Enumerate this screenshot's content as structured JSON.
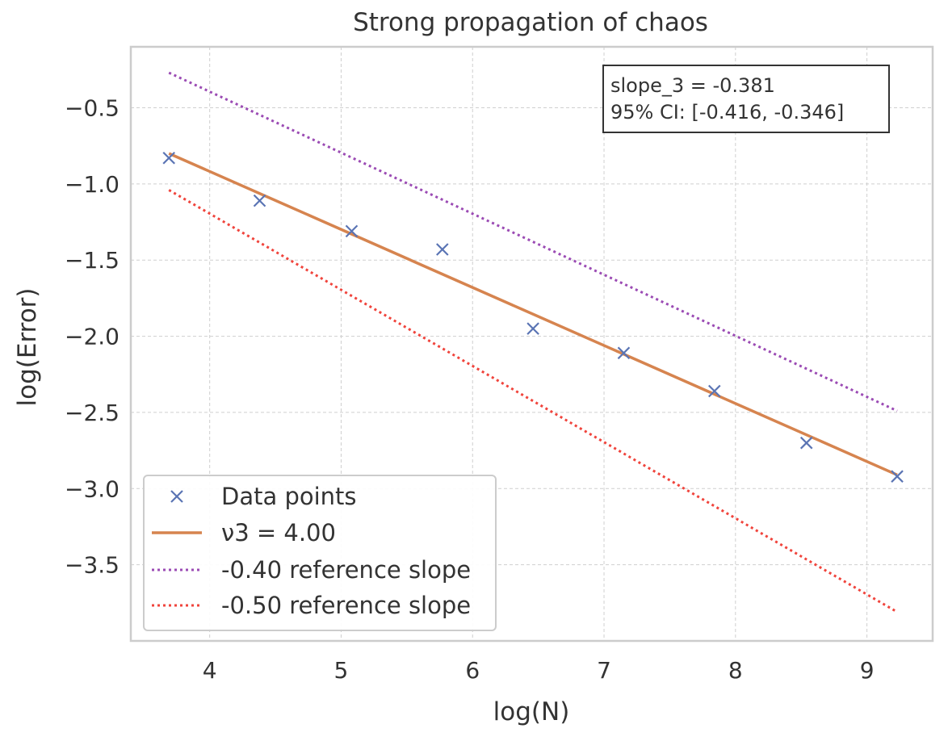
{
  "chart_data": {
    "type": "scatter",
    "title": "Strong propagation of chaos",
    "xlabel": "log(N)",
    "ylabel": "log(Error)",
    "xlim": [
      3.4,
      9.5
    ],
    "ylim": [
      -4.0,
      -0.1
    ],
    "x_ticks": [
      4,
      5,
      6,
      7,
      8,
      9
    ],
    "x_tick_labels": [
      "4",
      "5",
      "6",
      "7",
      "8",
      "9"
    ],
    "y_ticks": [
      -0.5,
      -1.0,
      -1.5,
      -2.0,
      -2.5,
      -3.0,
      -3.5
    ],
    "y_tick_labels": [
      "−0.5",
      "−1.0",
      "−1.5",
      "−2.0",
      "−2.5",
      "−3.0",
      "−3.5"
    ],
    "grid": true,
    "legend_position": "lower-left",
    "colors": {
      "data_points": "#5a74b4",
      "fit_line": "#d6844f",
      "ref_040": "#9b4bb4",
      "ref_050": "#f0443c",
      "axes": "#cccccc",
      "grid": "#cfcfcf",
      "text": "#333333"
    },
    "series": [
      {
        "name": "Data points",
        "kind": "marker-x",
        "x": [
          3.69,
          4.38,
          5.08,
          5.77,
          6.46,
          7.15,
          7.84,
          8.54,
          9.23
        ],
        "y": [
          -0.83,
          -1.11,
          -1.31,
          -1.43,
          -1.95,
          -2.11,
          -2.36,
          -2.7,
          -2.92
        ]
      },
      {
        "name": "ν3 = 4.00",
        "kind": "solid-line",
        "x": [
          3.69,
          9.23
        ],
        "y": [
          -0.8,
          -2.91
        ]
      },
      {
        "name": "-0.40 reference slope",
        "kind": "dotted-line",
        "x": [
          3.69,
          9.23
        ],
        "y": [
          -0.27,
          -2.49
        ]
      },
      {
        "name": "-0.50 reference slope",
        "kind": "dotted-line",
        "x": [
          3.69,
          9.23
        ],
        "y": [
          -1.04,
          -3.81
        ]
      }
    ],
    "annotation": {
      "lines": [
        "slope_3 = -0.381",
        "95% CI: [-0.416, -0.346]"
      ]
    }
  }
}
